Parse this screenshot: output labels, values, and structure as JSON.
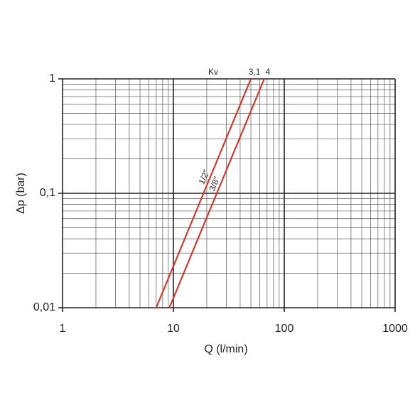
{
  "chart_data": {
    "type": "line",
    "xlabel": "Q (l/min)",
    "ylabel": "Δp (bar)",
    "legend_title": "Kv",
    "xscale": "log",
    "yscale": "log",
    "grid": true,
    "minor_grid": true,
    "xlim": [
      1,
      1000
    ],
    "ylim": [
      0.01,
      1
    ],
    "xticks": [
      1,
      10,
      100,
      1000
    ],
    "yticks": [
      {
        "value": 0.01,
        "label": "0,01"
      },
      {
        "value": 0.1,
        "label": "0,1"
      },
      1
    ],
    "series": [
      {
        "name": "3,1",
        "label": "1/2\"",
        "color": "#d0392b",
        "x": [
          7,
          50
        ],
        "values": [
          0.01,
          1
        ]
      },
      {
        "name": "4",
        "label": "3/8\"",
        "color": "#d0392b",
        "x": [
          9.2,
          66
        ],
        "values": [
          0.01,
          1
        ]
      }
    ]
  }
}
